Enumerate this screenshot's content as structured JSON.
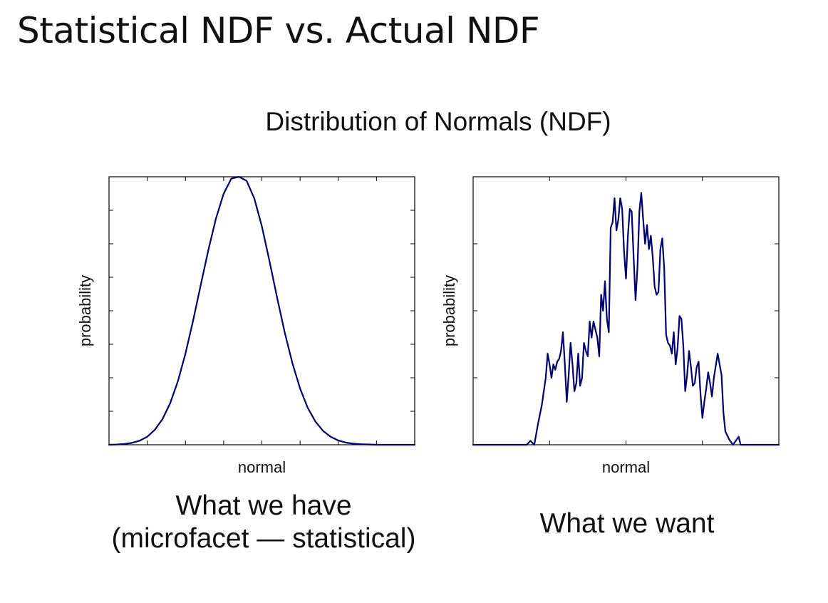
{
  "slide": {
    "title": "Statistical NDF vs. Actual NDF",
    "figure_title": "Distribution of Normals (NDF)",
    "caption_left_line1": "What we have",
    "caption_left_line2": "(microfacet — statistical)",
    "caption_right": "What we want"
  },
  "colors": {
    "line": "#00006e",
    "axis": "#000000"
  },
  "chart_data": [
    {
      "type": "line",
      "title": "",
      "xlabel": "normal",
      "ylabel": "probability",
      "xlim": [
        0,
        8
      ],
      "ylim": [
        0,
        1
      ],
      "grid": false,
      "series": [
        {
          "name": "statistical NDF",
          "x": [
            0.0,
            0.2,
            0.4,
            0.6,
            0.8,
            1.0,
            1.2,
            1.4,
            1.6,
            1.8,
            2.0,
            2.2,
            2.4,
            2.6,
            2.8,
            3.0,
            3.2,
            3.4,
            3.6,
            3.8,
            4.0,
            4.2,
            4.4,
            4.6,
            4.8,
            5.0,
            5.2,
            5.4,
            5.6,
            5.8,
            6.0,
            6.2,
            6.4,
            6.6,
            6.8,
            7.0,
            7.2,
            7.4,
            7.6,
            7.8,
            8.0
          ],
          "y": [
            0.0,
            0.001,
            0.003,
            0.007,
            0.015,
            0.03,
            0.056,
            0.096,
            0.155,
            0.236,
            0.34,
            0.463,
            0.596,
            0.727,
            0.845,
            0.937,
            0.993,
            1.0,
            0.985,
            0.92,
            0.815,
            0.685,
            0.548,
            0.418,
            0.304,
            0.21,
            0.138,
            0.087,
            0.052,
            0.03,
            0.016,
            0.008,
            0.004,
            0.002,
            0.001,
            0.0,
            0.0,
            0.0,
            0.0,
            0.0,
            0.0
          ]
        }
      ]
    },
    {
      "type": "line",
      "title": "",
      "xlabel": "normal",
      "ylabel": "probability",
      "xlim": [
        0,
        8
      ],
      "ylim": [
        0,
        1
      ],
      "grid": false,
      "series": [
        {
          "name": "actual NDF",
          "x": [
            0.0,
            0.8,
            1.4,
            1.5,
            1.6,
            1.65,
            1.7,
            1.8,
            1.9,
            1.95,
            2.0,
            2.05,
            2.1,
            2.15,
            2.2,
            2.25,
            2.3,
            2.35,
            2.4,
            2.45,
            2.5,
            2.55,
            2.6,
            2.65,
            2.7,
            2.75,
            2.8,
            2.85,
            2.9,
            2.95,
            3.0,
            3.05,
            3.1,
            3.15,
            3.2,
            3.25,
            3.3,
            3.35,
            3.4,
            3.45,
            3.5,
            3.55,
            3.6,
            3.65,
            3.7,
            3.75,
            3.8,
            3.85,
            3.9,
            3.95,
            4.0,
            4.05,
            4.1,
            4.15,
            4.2,
            4.25,
            4.3,
            4.35,
            4.4,
            4.45,
            4.5,
            4.55,
            4.6,
            4.65,
            4.7,
            4.75,
            4.8,
            4.85,
            4.9,
            4.95,
            5.0,
            5.05,
            5.1,
            5.15,
            5.2,
            5.25,
            5.3,
            5.35,
            5.4,
            5.45,
            5.5,
            5.55,
            5.6,
            5.65,
            5.7,
            5.75,
            5.8,
            5.85,
            5.9,
            5.95,
            6.0,
            6.05,
            6.1,
            6.15,
            6.2,
            6.25,
            6.3,
            6.4,
            6.5,
            6.55,
            6.6,
            6.7,
            6.8,
            6.95,
            7.0,
            7.1,
            7.2,
            7.4,
            7.6,
            8.0
          ],
          "y": [
            0.0,
            0.0,
            0.0,
            0.015,
            0.0,
            0.04,
            0.08,
            0.15,
            0.25,
            0.34,
            0.3,
            0.25,
            0.3,
            0.28,
            0.31,
            0.32,
            0.35,
            0.42,
            0.3,
            0.16,
            0.26,
            0.38,
            0.3,
            0.2,
            0.23,
            0.34,
            0.22,
            0.25,
            0.38,
            0.35,
            0.33,
            0.46,
            0.4,
            0.46,
            0.43,
            0.4,
            0.33,
            0.56,
            0.5,
            0.61,
            0.47,
            0.42,
            0.81,
            0.83,
            0.92,
            0.8,
            0.84,
            0.92,
            0.88,
            0.72,
            0.62,
            0.78,
            0.88,
            0.87,
            0.7,
            0.54,
            0.66,
            0.87,
            0.94,
            0.84,
            0.75,
            0.82,
            0.73,
            0.78,
            0.7,
            0.59,
            0.56,
            0.57,
            0.73,
            0.77,
            0.66,
            0.41,
            0.38,
            0.37,
            0.34,
            0.42,
            0.3,
            0.36,
            0.48,
            0.47,
            0.37,
            0.2,
            0.26,
            0.35,
            0.29,
            0.22,
            0.23,
            0.29,
            0.31,
            0.19,
            0.1,
            0.16,
            0.21,
            0.27,
            0.23,
            0.18,
            0.25,
            0.34,
            0.26,
            0.12,
            0.05,
            0.02,
            0.0,
            0.03,
            0.0,
            0.0,
            0.0,
            0.0,
            0.0,
            0.0
          ]
        }
      ]
    }
  ]
}
